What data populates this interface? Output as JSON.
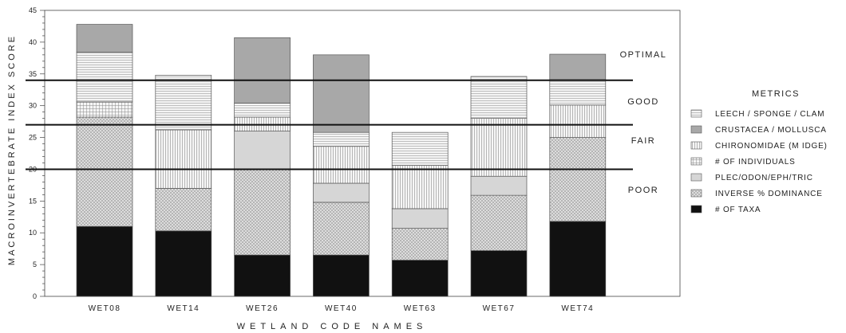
{
  "chart_data": {
    "type": "bar",
    "stacked": true,
    "ylabel": "MACROINVERTEBRATE INDEX SCORE",
    "xlabel": "WETLAND CODE NAMES",
    "ylim": [
      0,
      45
    ],
    "yticks": [
      0,
      5,
      10,
      15,
      20,
      25,
      30,
      35,
      40,
      45
    ],
    "categories": [
      "WET08",
      "WET14",
      "WET26",
      "WET40",
      "WET63",
      "WET67",
      "WET74"
    ],
    "series": [
      {
        "name": "# OF TAXA",
        "pattern": "black",
        "values": [
          11,
          10.3,
          6.5,
          6.5,
          5.7,
          7.2,
          11.8
        ]
      },
      {
        "name": "INVERSE % DOMINANCE",
        "pattern": "crosshatch",
        "values": [
          17.2,
          6.7,
          13.5,
          8.3,
          5.0,
          8.7,
          13.2
        ]
      },
      {
        "name": "PLEC/ODON/EPH/TRIC",
        "pattern": "lightgray",
        "values": [
          0,
          0,
          6.0,
          3.0,
          3.1,
          3.0,
          0
        ]
      },
      {
        "name": "# OF INDIVIDUALS",
        "pattern": "grid",
        "values": [
          2.4,
          0,
          0,
          0,
          0,
          0,
          0
        ]
      },
      {
        "name": "CHIRONOMIDAE (M IDGE)",
        "pattern": "vlines",
        "values": [
          0,
          9.2,
          2.2,
          5.8,
          6.8,
          9.1,
          5.1
        ]
      },
      {
        "name": "CRUSTACEA / MOLLUSCA",
        "pattern": "darkgray",
        "values": [
          0,
          0,
          0,
          0,
          0,
          0,
          0
        ]
      },
      {
        "name": "LEECH / SPONGE / CLAM",
        "pattern": "hlines",
        "values": [
          7.8,
          8.6,
          2.2,
          2.2,
          5.2,
          6.6,
          4.0
        ]
      },
      {
        "name": "CRUSTACEA / MOLLUSCA (top)",
        "pattern": "darkgray",
        "values": [
          4.4,
          0,
          10.3,
          12.2,
          0,
          0,
          4.0
        ]
      }
    ],
    "thresholds": [
      {
        "label": "POOR",
        "value": 20
      },
      {
        "label": "FAIR",
        "value": 27
      },
      {
        "label": "GOOD",
        "value": 34
      }
    ],
    "band_labels": [
      "OPTIMAL",
      "GOOD",
      "FAIR",
      "POOR"
    ],
    "legend": {
      "title": "METRICS",
      "placement": "right",
      "entries": [
        {
          "label": "LEECH / SPONGE / CLAM",
          "pattern": "hlines"
        },
        {
          "label": "CRUSTACEA / MOLLUSCA",
          "pattern": "darkgray"
        },
        {
          "label": "CHIRONOMIDAE (M IDGE)",
          "pattern": "vlines"
        },
        {
          "label": "# OF INDIVIDUALS",
          "pattern": "grid"
        },
        {
          "label": "PLEC/ODON/EPH/TRIC",
          "pattern": "lightgray"
        },
        {
          "label": "INVERSE % DOMINANCE",
          "pattern": "crosshatch"
        },
        {
          "label": "# OF TAXA",
          "pattern": "black"
        }
      ]
    },
    "colors": {
      "black": "#111111",
      "darkgray": "#a8a8a8",
      "lightgray": "#d6d6d6",
      "line": "#111111"
    }
  }
}
